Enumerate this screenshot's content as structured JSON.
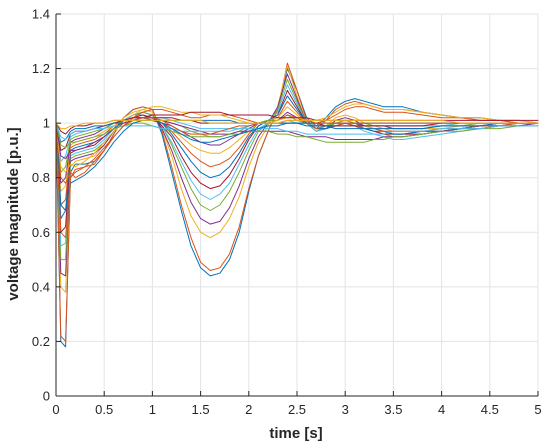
{
  "chart_data": {
    "type": "line",
    "title": "",
    "xlabel": "time [s]",
    "ylabel": "voltage magnitude [p.u.]",
    "xlim": [
      0,
      5
    ],
    "ylim": [
      0,
      1.4
    ],
    "xticks": [
      0,
      0.5,
      1,
      1.5,
      2,
      2.5,
      3,
      3.5,
      4,
      4.5,
      5
    ],
    "xtick_labels": [
      "0",
      "0.5",
      "1",
      "1.5",
      "2",
      "2.5",
      "3",
      "3.5",
      "4",
      "4.5",
      "5"
    ],
    "yticks": [
      0,
      0.2,
      0.4,
      0.6,
      0.8,
      1,
      1.2,
      1.4
    ],
    "ytick_labels": [
      "0",
      "0.2",
      "0.4",
      "0.6",
      "0.8",
      "1",
      "1.2",
      "1.4"
    ],
    "grid": true,
    "legend": "none",
    "series_colors": [
      "#0072BD",
      "#D95319",
      "#EDB120",
      "#7E2F8E",
      "#77AC30",
      "#4DBEEE",
      "#A2142F"
    ],
    "x": [
      0,
      0.05,
      0.1,
      0.15,
      0.2,
      0.3,
      0.4,
      0.5,
      0.6,
      0.7,
      0.8,
      0.9,
      1.0,
      1.1,
      1.2,
      1.3,
      1.4,
      1.5,
      1.6,
      1.7,
      1.8,
      1.9,
      2.0,
      2.1,
      2.2,
      2.3,
      2.4,
      2.5,
      2.6,
      2.7,
      2.8,
      2.9,
      3.0,
      3.1,
      3.2,
      3.3,
      3.4,
      3.5,
      3.6,
      3.8,
      4.0,
      4.2,
      4.4,
      4.6,
      4.8,
      5.0
    ],
    "series": [
      {
        "values": [
          1.0,
          0.2,
          0.18,
          0.82,
          0.85,
          0.85,
          0.86,
          0.9,
          0.96,
          1.02,
          1.05,
          1.06,
          1.05,
          0.96,
          0.82,
          0.68,
          0.55,
          0.47,
          0.44,
          0.45,
          0.5,
          0.6,
          0.75,
          0.88,
          0.97,
          1.05,
          1.2,
          1.12,
          1.02,
          0.99,
          1.02,
          1.06,
          1.08,
          1.09,
          1.08,
          1.07,
          1.06,
          1.06,
          1.06,
          1.04,
          1.03,
          1.02,
          1.02,
          1.01,
          1.01,
          1.0
        ]
      },
      {
        "values": [
          1.0,
          0.22,
          0.2,
          0.8,
          0.83,
          0.84,
          0.85,
          0.9,
          0.96,
          1.02,
          1.05,
          1.06,
          1.05,
          0.97,
          0.84,
          0.7,
          0.58,
          0.49,
          0.46,
          0.47,
          0.52,
          0.62,
          0.76,
          0.88,
          0.97,
          1.05,
          1.22,
          1.12,
          1.01,
          0.98,
          1.01,
          1.05,
          1.07,
          1.08,
          1.07,
          1.06,
          1.05,
          1.05,
          1.05,
          1.04,
          1.03,
          1.02,
          1.01,
          1.01,
          1.0,
          1.0
        ]
      },
      {
        "values": [
          1.0,
          0.4,
          0.38,
          0.84,
          0.86,
          0.87,
          0.88,
          0.92,
          0.97,
          1.02,
          1.04,
          1.05,
          1.04,
          0.98,
          0.88,
          0.76,
          0.66,
          0.6,
          0.58,
          0.6,
          0.65,
          0.73,
          0.84,
          0.93,
          0.99,
          1.06,
          1.21,
          1.1,
          1.0,
          0.97,
          0.99,
          1.02,
          1.03,
          1.02,
          1.0,
          0.99,
          0.98,
          0.97,
          0.97,
          0.97,
          0.98,
          0.98,
          0.99,
          0.99,
          1.0,
          1.0
        ]
      },
      {
        "values": [
          1.0,
          0.45,
          0.44,
          0.86,
          0.87,
          0.88,
          0.89,
          0.92,
          0.97,
          1.01,
          1.03,
          1.04,
          1.03,
          0.98,
          0.9,
          0.8,
          0.71,
          0.65,
          0.63,
          0.64,
          0.69,
          0.77,
          0.87,
          0.95,
          1.0,
          1.06,
          1.18,
          1.09,
          1.0,
          0.97,
          0.98,
          1.01,
          1.02,
          1.01,
          0.99,
          0.98,
          0.97,
          0.96,
          0.96,
          0.97,
          0.97,
          0.98,
          0.99,
          0.99,
          0.99,
          1.0
        ]
      },
      {
        "values": [
          1.0,
          0.5,
          0.5,
          0.87,
          0.88,
          0.89,
          0.9,
          0.93,
          0.97,
          1.01,
          1.03,
          1.04,
          1.03,
          0.99,
          0.92,
          0.84,
          0.76,
          0.7,
          0.68,
          0.7,
          0.75,
          0.82,
          0.9,
          0.97,
          1.0,
          1.05,
          1.16,
          1.08,
          1.0,
          0.97,
          0.98,
          1.0,
          1.01,
          1.0,
          0.98,
          0.97,
          0.96,
          0.95,
          0.95,
          0.96,
          0.97,
          0.98,
          0.98,
          0.99,
          0.99,
          1.0
        ]
      },
      {
        "values": [
          1.0,
          0.55,
          0.56,
          0.88,
          0.89,
          0.9,
          0.91,
          0.94,
          0.98,
          1.01,
          1.03,
          1.03,
          1.02,
          0.99,
          0.93,
          0.86,
          0.79,
          0.74,
          0.72,
          0.74,
          0.78,
          0.85,
          0.92,
          0.98,
          1.0,
          1.04,
          1.14,
          1.07,
          1.0,
          0.97,
          0.98,
          0.99,
          1.0,
          0.99,
          0.97,
          0.96,
          0.95,
          0.94,
          0.94,
          0.95,
          0.96,
          0.97,
          0.98,
          0.99,
          0.99,
          1.0
        ]
      },
      {
        "values": [
          1.0,
          0.6,
          0.62,
          0.89,
          0.9,
          0.91,
          0.92,
          0.95,
          0.98,
          1.01,
          1.02,
          1.03,
          1.02,
          0.99,
          0.95,
          0.88,
          0.82,
          0.78,
          0.76,
          0.77,
          0.81,
          0.87,
          0.94,
          0.99,
          1.01,
          1.03,
          1.12,
          1.06,
          1.0,
          0.98,
          0.98,
          0.99,
          1.0,
          0.99,
          0.98,
          0.97,
          0.96,
          0.96,
          0.96,
          0.96,
          0.97,
          0.98,
          0.99,
          0.99,
          1.0,
          1.0
        ]
      },
      {
        "values": [
          1.0,
          0.65,
          0.68,
          0.9,
          0.91,
          0.92,
          0.93,
          0.95,
          0.98,
          1.01,
          1.02,
          1.02,
          1.02,
          1.0,
          0.96,
          0.91,
          0.86,
          0.82,
          0.8,
          0.81,
          0.84,
          0.89,
          0.95,
          0.99,
          1.01,
          1.03,
          1.1,
          1.05,
          1.0,
          0.98,
          0.98,
          0.99,
          1.0,
          0.99,
          0.98,
          0.97,
          0.97,
          0.96,
          0.96,
          0.97,
          0.97,
          0.98,
          0.99,
          0.99,
          1.0,
          1.0
        ]
      },
      {
        "values": [
          1.0,
          0.7,
          0.72,
          0.91,
          0.92,
          0.93,
          0.94,
          0.96,
          0.99,
          1.01,
          1.02,
          1.02,
          1.01,
          1.0,
          0.97,
          0.93,
          0.89,
          0.86,
          0.84,
          0.85,
          0.87,
          0.91,
          0.96,
          1.0,
          1.01,
          1.02,
          1.08,
          1.04,
          1.0,
          0.98,
          0.99,
          0.99,
          1.0,
          0.99,
          0.98,
          0.98,
          0.97,
          0.97,
          0.97,
          0.97,
          0.98,
          0.98,
          0.99,
          0.99,
          1.0,
          1.0
        ]
      },
      {
        "values": [
          1.0,
          0.75,
          0.77,
          0.92,
          0.93,
          0.94,
          0.95,
          0.97,
          0.99,
          1.01,
          1.02,
          1.02,
          1.01,
          1.0,
          0.98,
          0.95,
          0.92,
          0.9,
          0.89,
          0.89,
          0.91,
          0.94,
          0.97,
          1.0,
          1.01,
          1.02,
          1.06,
          1.03,
          1.0,
          0.99,
          0.99,
          1.0,
          1.0,
          1.0,
          0.99,
          0.98,
          0.98,
          0.98,
          0.98,
          0.98,
          0.98,
          0.99,
          0.99,
          1.0,
          1.0,
          1.0
        ]
      },
      {
        "values": [
          1.0,
          0.78,
          0.8,
          0.93,
          0.94,
          0.95,
          0.96,
          0.98,
          1.0,
          1.01,
          1.02,
          1.02,
          1.01,
          1.0,
          0.99,
          0.97,
          0.95,
          0.93,
          0.92,
          0.92,
          0.94,
          0.96,
          0.98,
          1.0,
          1.01,
          1.01,
          1.04,
          1.02,
          1.0,
          0.99,
          0.99,
          1.0,
          1.0,
          1.0,
          0.99,
          0.99,
          0.99,
          0.98,
          0.98,
          0.98,
          0.99,
          0.99,
          0.99,
          1.0,
          1.0,
          1.0
        ]
      },
      {
        "values": [
          1.0,
          0.82,
          0.84,
          0.94,
          0.95,
          0.96,
          0.97,
          0.98,
          1.0,
          1.01,
          1.02,
          1.02,
          1.01,
          1.01,
          1.0,
          0.99,
          0.97,
          0.96,
          0.95,
          0.95,
          0.96,
          0.97,
          0.99,
          1.0,
          1.01,
          1.01,
          1.03,
          1.01,
          1.0,
          0.99,
          0.99,
          1.0,
          1.0,
          1.0,
          1.0,
          0.99,
          0.99,
          0.99,
          0.99,
          0.99,
          0.99,
          0.99,
          1.0,
          1.0,
          1.0,
          1.0
        ]
      },
      {
        "values": [
          1.0,
          0.86,
          0.88,
          0.95,
          0.96,
          0.97,
          0.98,
          0.99,
          1.0,
          1.01,
          1.02,
          1.02,
          1.02,
          1.02,
          1.01,
          1.0,
          0.99,
          0.98,
          0.98,
          0.98,
          0.98,
          0.98,
          0.99,
          1.0,
          1.0,
          1.0,
          1.01,
          1.0,
          1.0,
          0.99,
          0.99,
          0.99,
          0.99,
          0.99,
          0.99,
          0.99,
          0.99,
          0.99,
          0.99,
          0.99,
          0.99,
          1.0,
          1.0,
          1.0,
          1.0,
          1.0
        ]
      },
      {
        "values": [
          1.0,
          0.9,
          0.91,
          0.96,
          0.97,
          0.97,
          0.98,
          0.99,
          1.0,
          1.01,
          1.01,
          1.02,
          1.02,
          1.02,
          1.02,
          1.01,
          1.01,
          1.0,
          1.0,
          1.0,
          1.0,
          1.0,
          1.0,
          1.0,
          1.0,
          1.0,
          1.0,
          1.0,
          1.0,
          1.0,
          0.99,
          0.99,
          0.99,
          0.99,
          0.99,
          0.99,
          0.99,
          0.99,
          0.99,
          0.99,
          1.0,
          1.0,
          1.0,
          1.0,
          1.0,
          1.0
        ]
      },
      {
        "values": [
          1.0,
          0.93,
          0.94,
          0.97,
          0.98,
          0.98,
          0.99,
          0.99,
          1.0,
          1.0,
          1.01,
          1.01,
          1.01,
          1.01,
          1.01,
          1.01,
          1.01,
          1.01,
          1.01,
          1.01,
          1.01,
          1.0,
          1.0,
          1.0,
          1.0,
          1.0,
          1.0,
          1.0,
          1.0,
          1.0,
          1.0,
          1.0,
          1.0,
          1.0,
          1.0,
          1.0,
          1.0,
          1.0,
          1.0,
          1.0,
          1.0,
          1.0,
          1.0,
          1.0,
          1.0,
          1.0
        ]
      },
      {
        "values": [
          1.0,
          0.8,
          0.78,
          0.82,
          0.8,
          0.82,
          0.86,
          0.9,
          0.95,
          0.99,
          1.02,
          1.04,
          1.05,
          1.05,
          1.04,
          1.03,
          1.02,
          1.02,
          1.03,
          1.03,
          1.03,
          1.02,
          1.01,
          1.0,
          1.0,
          1.01,
          1.03,
          1.02,
          1.01,
          1.0,
          1.01,
          1.03,
          1.05,
          1.06,
          1.06,
          1.05,
          1.04,
          1.04,
          1.04,
          1.03,
          1.02,
          1.02,
          1.01,
          1.01,
          1.0,
          1.0
        ]
      },
      {
        "values": [
          1.0,
          0.84,
          0.82,
          0.85,
          0.84,
          0.86,
          0.89,
          0.93,
          0.97,
          1.0,
          1.03,
          1.05,
          1.06,
          1.06,
          1.05,
          1.04,
          1.04,
          1.03,
          1.03,
          1.03,
          1.02,
          1.01,
          1.0,
          1.0,
          1.0,
          1.01,
          1.02,
          1.02,
          1.01,
          1.01,
          1.02,
          1.04,
          1.06,
          1.07,
          1.07,
          1.06,
          1.05,
          1.05,
          1.05,
          1.04,
          1.03,
          1.02,
          1.02,
          1.01,
          1.01,
          1.0
        ]
      },
      {
        "values": [
          1.0,
          0.88,
          0.87,
          0.9,
          0.9,
          0.91,
          0.93,
          0.95,
          0.98,
          1.0,
          1.01,
          1.02,
          1.02,
          1.01,
          1.0,
          0.99,
          0.98,
          0.97,
          0.96,
          0.96,
          0.96,
          0.97,
          0.97,
          0.97,
          0.97,
          0.97,
          0.97,
          0.96,
          0.95,
          0.95,
          0.95,
          0.94,
          0.94,
          0.94,
          0.94,
          0.94,
          0.95,
          0.95,
          0.95,
          0.96,
          0.97,
          0.98,
          0.98,
          0.99,
          0.99,
          1.0
        ]
      },
      {
        "values": [
          1.0,
          0.92,
          0.91,
          0.93,
          0.93,
          0.94,
          0.95,
          0.96,
          0.98,
          0.99,
          1.0,
          1.0,
          0.99,
          0.98,
          0.97,
          0.96,
          0.95,
          0.95,
          0.95,
          0.95,
          0.96,
          0.96,
          0.97,
          0.97,
          0.97,
          0.96,
          0.96,
          0.95,
          0.95,
          0.94,
          0.93,
          0.93,
          0.93,
          0.93,
          0.93,
          0.94,
          0.94,
          0.95,
          0.95,
          0.96,
          0.97,
          0.97,
          0.98,
          0.98,
          0.99,
          0.99
        ]
      },
      {
        "values": [
          1.0,
          0.95,
          0.94,
          0.96,
          0.97,
          0.97,
          0.98,
          0.98,
          0.99,
          0.99,
          0.99,
          0.99,
          0.99,
          0.98,
          0.98,
          0.97,
          0.97,
          0.97,
          0.97,
          0.97,
          0.97,
          0.98,
          0.98,
          0.98,
          0.98,
          0.98,
          0.97,
          0.97,
          0.96,
          0.96,
          0.96,
          0.96,
          0.96,
          0.96,
          0.96,
          0.96,
          0.96,
          0.97,
          0.97,
          0.97,
          0.98,
          0.98,
          0.98,
          0.99,
          0.99,
          0.99
        ]
      },
      {
        "values": [
          1.0,
          0.97,
          0.96,
          0.98,
          0.99,
          0.99,
          1.0,
          1.0,
          1.01,
          1.01,
          1.02,
          1.02,
          1.03,
          1.03,
          1.03,
          1.03,
          1.04,
          1.04,
          1.04,
          1.04,
          1.03,
          1.03,
          1.03,
          1.03,
          1.03,
          1.02,
          1.02,
          1.02,
          1.02,
          1.01,
          1.01,
          1.01,
          1.01,
          1.01,
          1.01,
          1.01,
          1.01,
          1.01,
          1.01,
          1.01,
          1.01,
          1.01,
          1.01,
          1.01,
          1.01,
          1.01
        ]
      },
      {
        "values": [
          1.0,
          0.7,
          0.68,
          0.78,
          0.79,
          0.81,
          0.84,
          0.88,
          0.93,
          0.97,
          1.0,
          1.01,
          1.01,
          1.0,
          0.98,
          0.96,
          0.94,
          0.93,
          0.93,
          0.94,
          0.95,
          0.96,
          0.97,
          0.98,
          0.99,
          0.99,
          1.0,
          1.0,
          0.99,
          0.99,
          0.99,
          0.98,
          0.98,
          0.98,
          0.98,
          0.98,
          0.98,
          0.98,
          0.98,
          0.98,
          0.99,
          0.99,
          0.99,
          1.0,
          1.0,
          1.0
        ]
      },
      {
        "values": [
          1.0,
          0.6,
          0.58,
          0.8,
          0.82,
          0.84,
          0.87,
          0.91,
          0.95,
          0.99,
          1.01,
          1.02,
          1.02,
          1.01,
          0.99,
          0.97,
          0.96,
          0.96,
          0.96,
          0.97,
          0.98,
          0.99,
          0.99,
          1.0,
          1.0,
          1.0,
          1.01,
          1.01,
          1.01,
          1.0,
          1.0,
          1.0,
          1.0,
          1.0,
          1.0,
          1.0,
          1.0,
          1.0,
          1.0,
          1.0,
          1.0,
          1.0,
          1.0,
          1.0,
          1.0,
          1.0
        ]
      },
      {
        "values": [
          1.0,
          0.98,
          0.98,
          0.99,
          0.99,
          1.0,
          1.0,
          1.0,
          1.01,
          1.01,
          1.01,
          1.01,
          1.01,
          1.01,
          1.01,
          1.01,
          1.01,
          1.01,
          1.0,
          1.0,
          1.0,
          1.0,
          1.0,
          1.0,
          1.0,
          1.0,
          1.01,
          1.01,
          1.01,
          1.01,
          1.01,
          1.01,
          1.01,
          1.01,
          1.01,
          1.01,
          1.01,
          1.01,
          1.01,
          1.01,
          1.01,
          1.0,
          1.0,
          1.0,
          1.0,
          1.0
        ]
      }
    ]
  }
}
